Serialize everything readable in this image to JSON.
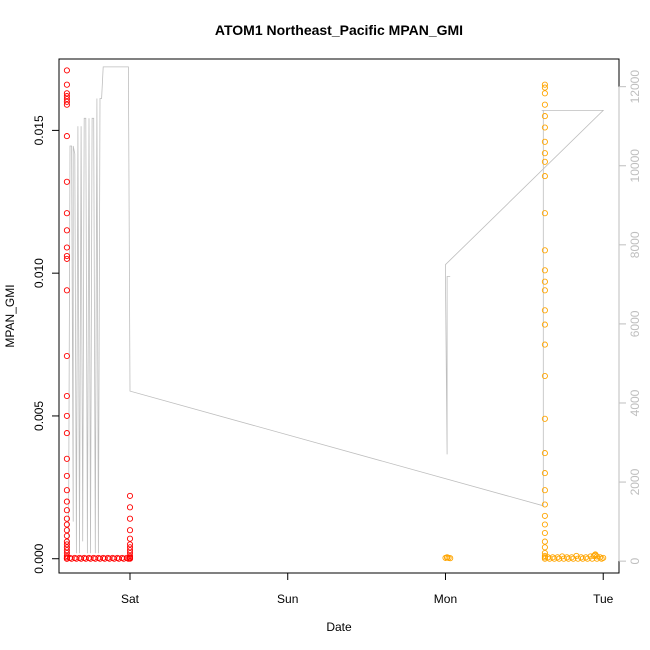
{
  "chart_data": {
    "type": "scatter",
    "title": "ATOM1 Northeast_Pacific MPAN_GMI",
    "xlabel": "Date",
    "ylabel": "MPAN_GMI",
    "x_axis": {
      "unit": "days",
      "range": [
        -0.45,
        3.1
      ],
      "ticks": [
        {
          "value": 0,
          "label": "Sat"
        },
        {
          "value": 1,
          "label": "Sun"
        },
        {
          "value": 2,
          "label": "Mon"
        },
        {
          "value": 3,
          "label": "Tue"
        }
      ]
    },
    "y_axis": {
      "range": [
        -0.0005,
        0.0175
      ],
      "ticks": [
        {
          "value": 0.0,
          "label": "0.000"
        },
        {
          "value": 0.005,
          "label": "0.005"
        },
        {
          "value": 0.01,
          "label": "0.010"
        },
        {
          "value": 0.015,
          "label": "0.015"
        }
      ]
    },
    "y2_axis": {
      "range": [
        -300,
        12700
      ],
      "color": "#bebebe",
      "ticks": [
        {
          "value": 0,
          "label": "0"
        },
        {
          "value": 2000,
          "label": "2000"
        },
        {
          "value": 4000,
          "label": "4000"
        },
        {
          "value": 6000,
          "label": "6000"
        },
        {
          "value": 8000,
          "label": "8000"
        },
        {
          "value": 10000,
          "label": "10000"
        },
        {
          "value": 12000,
          "label": "12000"
        }
      ]
    },
    "grid": false,
    "legend": "none",
    "series": [
      {
        "color": "#ff0000",
        "marker": "open-circle",
        "x": [
          -0.4,
          -0.4,
          -0.4,
          -0.4,
          -0.4,
          -0.4,
          -0.4,
          -0.4,
          -0.4,
          -0.4,
          -0.4,
          -0.4,
          -0.4,
          -0.4,
          -0.4,
          -0.4,
          -0.4,
          -0.4,
          -0.4,
          -0.4,
          -0.4,
          -0.4,
          -0.4,
          -0.4,
          -0.4,
          -0.4,
          -0.4,
          -0.4,
          -0.4,
          -0.4,
          -0.4,
          -0.4,
          -0.4,
          -0.4,
          -0.4,
          -0.4,
          -0.4,
          -0.37,
          -0.34,
          -0.31,
          -0.28,
          -0.25,
          -0.22,
          -0.19,
          -0.16,
          -0.13,
          -0.1,
          -0.07,
          -0.04,
          -0.01,
          -0.38,
          -0.35,
          -0.32,
          -0.29,
          -0.26,
          -0.23,
          -0.2,
          -0.17,
          -0.14,
          -0.11,
          -0.08,
          -0.05,
          -0.02,
          0.0,
          0.0,
          0.0,
          0.0,
          0.0,
          0.0,
          0.0,
          0.0,
          0.0,
          0.0,
          0.0,
          0.0,
          0.0
        ],
        "y": [
          0.0171,
          0.0166,
          0.0163,
          0.0162,
          0.0161,
          0.016,
          0.0159,
          0.0148,
          0.0132,
          0.0121,
          0.0115,
          0.0109,
          0.0106,
          0.0105,
          0.0094,
          0.0071,
          0.0057,
          0.005,
          0.0044,
          0.0035,
          0.0029,
          0.0024,
          0.002,
          0.0017,
          0.0014,
          0.0012,
          0.001,
          0.0008,
          0.0006,
          0.0005,
          0.0004,
          0.0003,
          0.0002,
          0.0001,
          5e-05,
          0.0,
          0.0,
          0.0,
          0.0,
          0.0,
          0.0,
          0.0,
          0.0,
          0.0,
          0.0,
          0.0,
          0.0,
          0.0,
          0.0,
          0.0,
          3e-05,
          3e-05,
          3e-05,
          3e-05,
          3e-05,
          3e-05,
          3e-05,
          3e-05,
          3e-05,
          3e-05,
          3e-05,
          3e-05,
          3e-05,
          0.0022,
          0.0018,
          0.0014,
          0.001,
          0.0007,
          0.0005,
          0.0004,
          0.0003,
          0.0002,
          0.0001,
          5e-05,
          2e-05,
          0.0
        ]
      },
      {
        "color": "#ffa500",
        "marker": "open-circle",
        "x": [
          2.0,
          2.01,
          2.02,
          2.03,
          2.01,
          2.63,
          2.63,
          2.63,
          2.63,
          2.63,
          2.63,
          2.63,
          2.63,
          2.63,
          2.63,
          2.63,
          2.63,
          2.63,
          2.63,
          2.63,
          2.63,
          2.63,
          2.63,
          2.63,
          2.63,
          2.63,
          2.63,
          2.63,
          2.63,
          2.63,
          2.63,
          2.63,
          2.63,
          2.63,
          2.63,
          2.63,
          2.63,
          2.63,
          2.66,
          2.69,
          2.72,
          2.75,
          2.78,
          2.81,
          2.84,
          2.87,
          2.9,
          2.93,
          2.96,
          2.99,
          2.65,
          2.68,
          2.71,
          2.74,
          2.77,
          2.8,
          2.83,
          2.86,
          2.89,
          2.92,
          2.95,
          2.98,
          2.94,
          2.95,
          2.96,
          3.0
        ],
        "y": [
          3e-05,
          5e-05,
          3e-05,
          2e-05,
          4e-05,
          0.0166,
          0.0165,
          0.0163,
          0.0159,
          0.0155,
          0.0151,
          0.0146,
          0.0142,
          0.0139,
          0.0134,
          0.0121,
          0.0108,
          0.0101,
          0.0097,
          0.0094,
          0.0087,
          0.0082,
          0.0075,
          0.0064,
          0.0049,
          0.0037,
          0.003,
          0.0024,
          0.0019,
          0.0015,
          0.0012,
          0.0009,
          0.0006,
          0.0004,
          0.0002,
          0.0001,
          5e-05,
          0.0,
          0.0,
          0.0,
          0.0,
          0.0,
          0.0,
          0.0,
          0.0,
          0.0,
          0.0,
          0.0,
          0.0,
          0.0,
          5e-05,
          5e-05,
          5e-05,
          8e-05,
          5e-05,
          5e-05,
          0.0001,
          5e-05,
          5e-05,
          8e-05,
          0.00015,
          5e-05,
          0.0001,
          0.00012,
          8e-05,
          3e-05
        ]
      },
      {
        "color": "#bebebe",
        "type": "line",
        "axis": "right",
        "x": [
          -0.39,
          -0.38,
          -0.37,
          -0.36,
          -0.36,
          -0.35,
          -0.34,
          -0.33,
          -0.32,
          -0.31,
          -0.3,
          -0.29,
          -0.28,
          -0.27,
          -0.26,
          -0.25,
          -0.24,
          -0.23,
          -0.22,
          -0.21,
          -0.2,
          -0.19,
          -0.18,
          -0.17,
          -0.16,
          -0.15,
          -0.14,
          -0.13,
          -0.12,
          -0.11,
          -0.1,
          -0.09,
          -0.08,
          -0.07,
          -0.06,
          -0.05,
          -0.04,
          -0.03,
          -0.02,
          -0.01,
          0.0,
          0.0,
          2.62,
          2.62,
          2.61,
          2.61,
          2.61,
          2.62,
          2.63,
          2.63,
          2.64,
          2.65,
          2.66,
          2.67,
          2.68,
          2.69,
          2.7,
          2.71,
          2.72,
          2.73,
          2.74,
          2.75,
          2.76,
          2.78,
          2.79,
          2.8,
          2.81,
          2.82,
          2.83,
          2.84,
          2.85,
          2.86,
          2.87,
          2.88,
          2.89,
          2.9,
          2.91,
          2.92,
          2.93,
          2.94,
          2.95,
          2.96,
          2.97,
          2.98,
          2.99,
          3.0,
          3.0,
          2.0,
          2.0,
          2.01,
          2.01,
          2.02,
          2.02,
          2.03
        ],
        "y": [
          200,
          10500,
          10500,
          1000,
          10500,
          10300,
          200,
          11000,
          200,
          11000,
          500,
          11200,
          11200,
          200,
          11200,
          200,
          11200,
          11200,
          200,
          11700,
          200,
          11700,
          11700,
          12500,
          12500,
          12500,
          12500,
          12500,
          12500,
          12500,
          12500,
          12500,
          12500,
          12500,
          12500,
          12500,
          12500,
          12500,
          12500,
          12500,
          4300,
          4300,
          1400,
          11400,
          11400,
          11400,
          11400,
          11400,
          11400,
          11400,
          11400,
          11400,
          11400,
          11400,
          11400,
          11400,
          11400,
          11400,
          11400,
          11400,
          11400,
          11400,
          11400,
          11400,
          11400,
          11400,
          11400,
          11400,
          11400,
          11400,
          11400,
          11400,
          11400,
          11400,
          11400,
          11400,
          11400,
          11400,
          11400,
          11400,
          11400,
          11400,
          11400,
          11400,
          11400,
          11400,
          11400,
          7500,
          7000,
          2700,
          7200,
          7200,
          7200,
          7200
        ]
      }
    ]
  }
}
